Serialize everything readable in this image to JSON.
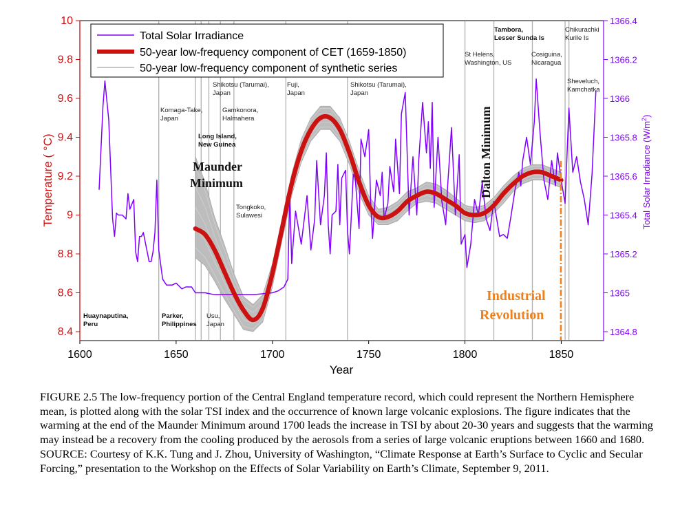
{
  "figure_caption": "FIGURE 2.5  The low-frequency portion of the Central England temperature record, which could represent the Northern Hemisphere mean, is plotted along with the solar TSI index and the occurrence of known large volcanic explosions.  The figure indicates that the warming at the end of the Maunder Minimum around 1700 leads the increase in TSI by about 20-30 years and suggests that the warming may instead be a recovery from the cooling produced by the aerosols from a series of large volcanic eruptions between 1660 and 1680.  SOURCE: Courtesy of K.K. Tung and J. Zhou, University of Washington, “Climate Response at Earth’s Surface to Cyclic and Secular Forcing,” presentation to the Workshop on the Effects of Solar Variability on Earth’s Climate, September 9, 2011.",
  "chart_data": {
    "type": "line",
    "xlabel": "Year",
    "ylabel": "Temperature ( °C)",
    "y2label": "Total Solar Irradiance (W/m²)",
    "y2label_main": "Total Solar Irradiance (W/m",
    "y2label_sup": "2",
    "y2label_end": ")",
    "xlim": [
      1600,
      1872
    ],
    "ylim": [
      8.4,
      10.0
    ],
    "y2lim": [
      1364.8,
      1366.4
    ],
    "x_ticks": [
      "1600",
      "1650",
      "1700",
      "1750",
      "1800",
      "1850"
    ],
    "y_ticks": [
      "10",
      "9.8",
      "9.6",
      "9.4",
      "9.2",
      "9",
      "8.8",
      "8.6",
      "8.4"
    ],
    "y2_ticks": [
      "1366.4",
      "1366.2",
      "1366",
      "1365.8",
      "1365.6",
      "1365.4",
      "1365.2",
      "1365",
      "1364.8"
    ],
    "legend_position": "top-left",
    "colors": {
      "tsi": "#8000ff",
      "cet": "#cc1111",
      "synthetic": "#a8a8a8",
      "industrial": "#f0801a",
      "temperature_axis": "#cc1111",
      "tsi_axis": "#8000ff",
      "volcano_line": "#b0b0b0"
    },
    "series": [
      {
        "name": "Total Solar Irradiance",
        "axis": "right",
        "x": [
          1610,
          1612,
          1613,
          1615,
          1617,
          1618,
          1619,
          1620,
          1622,
          1624,
          1625,
          1626,
          1628,
          1629,
          1630,
          1631,
          1632,
          1633,
          1634,
          1635,
          1636,
          1637,
          1638,
          1639,
          1640,
          1641,
          1643,
          1645,
          1648,
          1650,
          1653,
          1655,
          1658,
          1660,
          1665,
          1670,
          1680,
          1690,
          1700,
          1703,
          1706,
          1708,
          1709,
          1710,
          1712,
          1715,
          1718,
          1720,
          1722,
          1723,
          1725,
          1727,
          1728,
          1729,
          1730,
          1731,
          1733,
          1734,
          1735,
          1736,
          1738,
          1739,
          1740,
          1741,
          1742,
          1743,
          1745,
          1746,
          1748,
          1750,
          1751,
          1752,
          1754,
          1756,
          1757,
          1758,
          1760,
          1761,
          1763,
          1764,
          1766,
          1767,
          1769,
          1771,
          1773,
          1775,
          1776,
          1778,
          1780,
          1781,
          1782,
          1783,
          1784,
          1786,
          1788,
          1790,
          1791,
          1793,
          1795,
          1797,
          1798,
          1800,
          1801,
          1803,
          1805,
          1807,
          1809,
          1811,
          1813,
          1815,
          1818,
          1820,
          1822,
          1824,
          1826,
          1828,
          1829,
          1830,
          1832,
          1834,
          1836,
          1837,
          1839,
          1841,
          1843,
          1845,
          1847,
          1848,
          1850,
          1852,
          1854,
          1856,
          1858,
          1860,
          1862,
          1864,
          1866,
          1868
        ],
        "values": [
          1365.53,
          1365.96,
          1366.09,
          1365.89,
          1365.38,
          1365.29,
          1365.41,
          1365.4,
          1365.4,
          1365.38,
          1365.51,
          1365.43,
          1365.48,
          1365.21,
          1365.16,
          1365.29,
          1365.29,
          1365.31,
          1365.26,
          1365.21,
          1365.16,
          1365.16,
          1365.21,
          1365.31,
          1365.58,
          1365.22,
          1365.07,
          1365.04,
          1365.04,
          1365.05,
          1365.02,
          1365.03,
          1365.03,
          1365.0,
          1365.0,
          1364.99,
          1364.99,
          1364.99,
          1365.0,
          1365.01,
          1365.03,
          1365.07,
          1365.52,
          1365.15,
          1365.42,
          1365.25,
          1365.5,
          1365.22,
          1365.38,
          1365.68,
          1365.35,
          1365.5,
          1365.72,
          1365.35,
          1365.2,
          1365.4,
          1365.42,
          1365.66,
          1365.35,
          1365.59,
          1365.63,
          1365.32,
          1365.2,
          1365.4,
          1365.61,
          1365.59,
          1365.33,
          1365.79,
          1365.7,
          1365.84,
          1365.47,
          1365.28,
          1365.58,
          1365.5,
          1365.62,
          1365.38,
          1365.46,
          1365.65,
          1365.52,
          1365.79,
          1365.51,
          1365.92,
          1366.03,
          1365.4,
          1365.7,
          1365.4,
          1365.68,
          1365.98,
          1365.72,
          1365.88,
          1365.64,
          1365.98,
          1365.44,
          1365.8,
          1365.47,
          1365.35,
          1365.55,
          1365.85,
          1365.4,
          1365.71,
          1365.25,
          1365.3,
          1365.13,
          1365.25,
          1365.48,
          1365.4,
          1365.57,
          1365.38,
          1365.32,
          1365.47,
          1365.29,
          1365.3,
          1365.28,
          1365.4,
          1365.53,
          1365.62,
          1365.55,
          1365.68,
          1365.8,
          1365.66,
          1365.88,
          1366.1,
          1365.82,
          1365.58,
          1365.48,
          1365.68,
          1365.55,
          1365.72,
          1365.58,
          1365.46,
          1365.95,
          1365.62,
          1365.7,
          1365.57,
          1365.48,
          1365.35,
          1365.61,
          1366.04
        ]
      },
      {
        "name": "50-year low-frequency component of CET (1659-1850)",
        "axis": "left",
        "x": [
          1660,
          1665,
          1670,
          1675,
          1680,
          1685,
          1690,
          1695,
          1700,
          1705,
          1710,
          1715,
          1720,
          1725,
          1730,
          1735,
          1740,
          1745,
          1750,
          1755,
          1760,
          1765,
          1770,
          1775,
          1780,
          1785,
          1790,
          1795,
          1800,
          1805,
          1810,
          1815,
          1820,
          1825,
          1830,
          1835,
          1840,
          1845,
          1850
        ],
        "values": [
          8.93,
          8.9,
          8.82,
          8.71,
          8.6,
          8.51,
          8.46,
          8.52,
          8.7,
          8.93,
          9.16,
          9.33,
          9.44,
          9.5,
          9.5,
          9.44,
          9.32,
          9.17,
          9.05,
          8.99,
          8.99,
          9.02,
          9.07,
          9.1,
          9.12,
          9.11,
          9.08,
          9.05,
          9.01,
          9.0,
          9.01,
          9.05,
          9.11,
          9.16,
          9.2,
          9.22,
          9.22,
          9.2,
          9.18
        ]
      },
      {
        "name": "50-year low-frequency component of synthetic series",
        "axis": "left",
        "x": [
          1660,
          1665,
          1670,
          1675,
          1680,
          1685,
          1690,
          1695,
          1700,
          1705,
          1710,
          1715,
          1720,
          1725,
          1730,
          1735,
          1740,
          1745,
          1750,
          1755,
          1760,
          1765,
          1770,
          1775,
          1780,
          1785,
          1790,
          1795,
          1800,
          1805,
          1810,
          1815,
          1820,
          1825,
          1830,
          1835,
          1840,
          1845,
          1850
        ],
        "upper": [
          9.3,
          9.17,
          8.99,
          8.85,
          8.7,
          8.58,
          8.54,
          8.59,
          8.75,
          8.98,
          9.21,
          9.39,
          9.5,
          9.56,
          9.56,
          9.5,
          9.38,
          9.23,
          9.1,
          9.03,
          9.04,
          9.07,
          9.12,
          9.14,
          9.17,
          9.16,
          9.13,
          9.09,
          9.05,
          9.04,
          9.05,
          9.09,
          9.15,
          9.2,
          9.24,
          9.26,
          9.26,
          9.24,
          9.22
        ],
        "lower": [
          8.78,
          8.74,
          8.66,
          8.57,
          8.49,
          8.41,
          8.4,
          8.45,
          8.63,
          8.87,
          9.1,
          9.27,
          9.38,
          9.44,
          9.44,
          9.38,
          9.26,
          9.11,
          9.0,
          8.95,
          8.95,
          8.97,
          9.02,
          9.06,
          9.07,
          9.06,
          9.03,
          9.0,
          8.97,
          8.96,
          8.97,
          9.01,
          9.06,
          9.12,
          9.16,
          9.18,
          9.18,
          9.16,
          9.14
        ]
      }
    ],
    "volcano_years": [
      1600,
      1641,
      1660,
      1663,
      1667,
      1673,
      1680,
      1707,
      1739,
      1800,
      1815,
      1835,
      1852,
      1854
    ],
    "industrial_revolution_year": 1850,
    "annotations": [
      {
        "id": "komaga",
        "lines": [
          "Komaga-Take,",
          "Japan"
        ],
        "bold": false
      },
      {
        "id": "shikotsu1",
        "lines": [
          "Shikotsu (Tarumai),",
          "Japan"
        ],
        "bold": false
      },
      {
        "id": "gamkonora",
        "lines": [
          "Gamkonora,",
          "Halmahera"
        ],
        "bold": false
      },
      {
        "id": "longisland",
        "lines": [
          "Long Island,",
          "New Guinea"
        ],
        "bold": true
      },
      {
        "id": "fuji",
        "lines": [
          "Fuji,",
          "Japan"
        ],
        "bold": false
      },
      {
        "id": "shikotsu2",
        "lines": [
          "Shikotsu (Tarumai),",
          "Japan"
        ],
        "bold": false
      },
      {
        "id": "tongkoko",
        "lines": [
          "Tongkoko,",
          "Sulawesi"
        ],
        "bold": false
      },
      {
        "id": "sthelens",
        "lines": [
          "St Helens,",
          "Washington, US"
        ],
        "bold": false
      },
      {
        "id": "tambora",
        "lines": [
          "Tambora,",
          "Lesser Sunda Is"
        ],
        "bold": true
      },
      {
        "id": "cosiguina",
        "lines": [
          "Cosiguina,",
          "Nicaragua"
        ],
        "bold": false
      },
      {
        "id": "chikurachki",
        "lines": [
          "Chikurachki",
          "Kurile Is"
        ],
        "bold": false
      },
      {
        "id": "sheveluch",
        "lines": [
          "Sheveluch,",
          "Kamchatka"
        ],
        "bold": false
      },
      {
        "id": "huaynaputina",
        "lines": [
          "Huaynaputina,",
          "Peru"
        ],
        "bold": true
      },
      {
        "id": "parker",
        "lines": [
          "Parker,",
          "Philippines"
        ],
        "bold": true
      },
      {
        "id": "usu",
        "lines": [
          "Usu,",
          "Japan"
        ],
        "bold": false
      }
    ],
    "maunder_label": [
      "Maunder",
      "Minimum"
    ],
    "dalton_label": "Dalton Minimum",
    "industrial_label": [
      "Industrial",
      "Revolution"
    ]
  }
}
